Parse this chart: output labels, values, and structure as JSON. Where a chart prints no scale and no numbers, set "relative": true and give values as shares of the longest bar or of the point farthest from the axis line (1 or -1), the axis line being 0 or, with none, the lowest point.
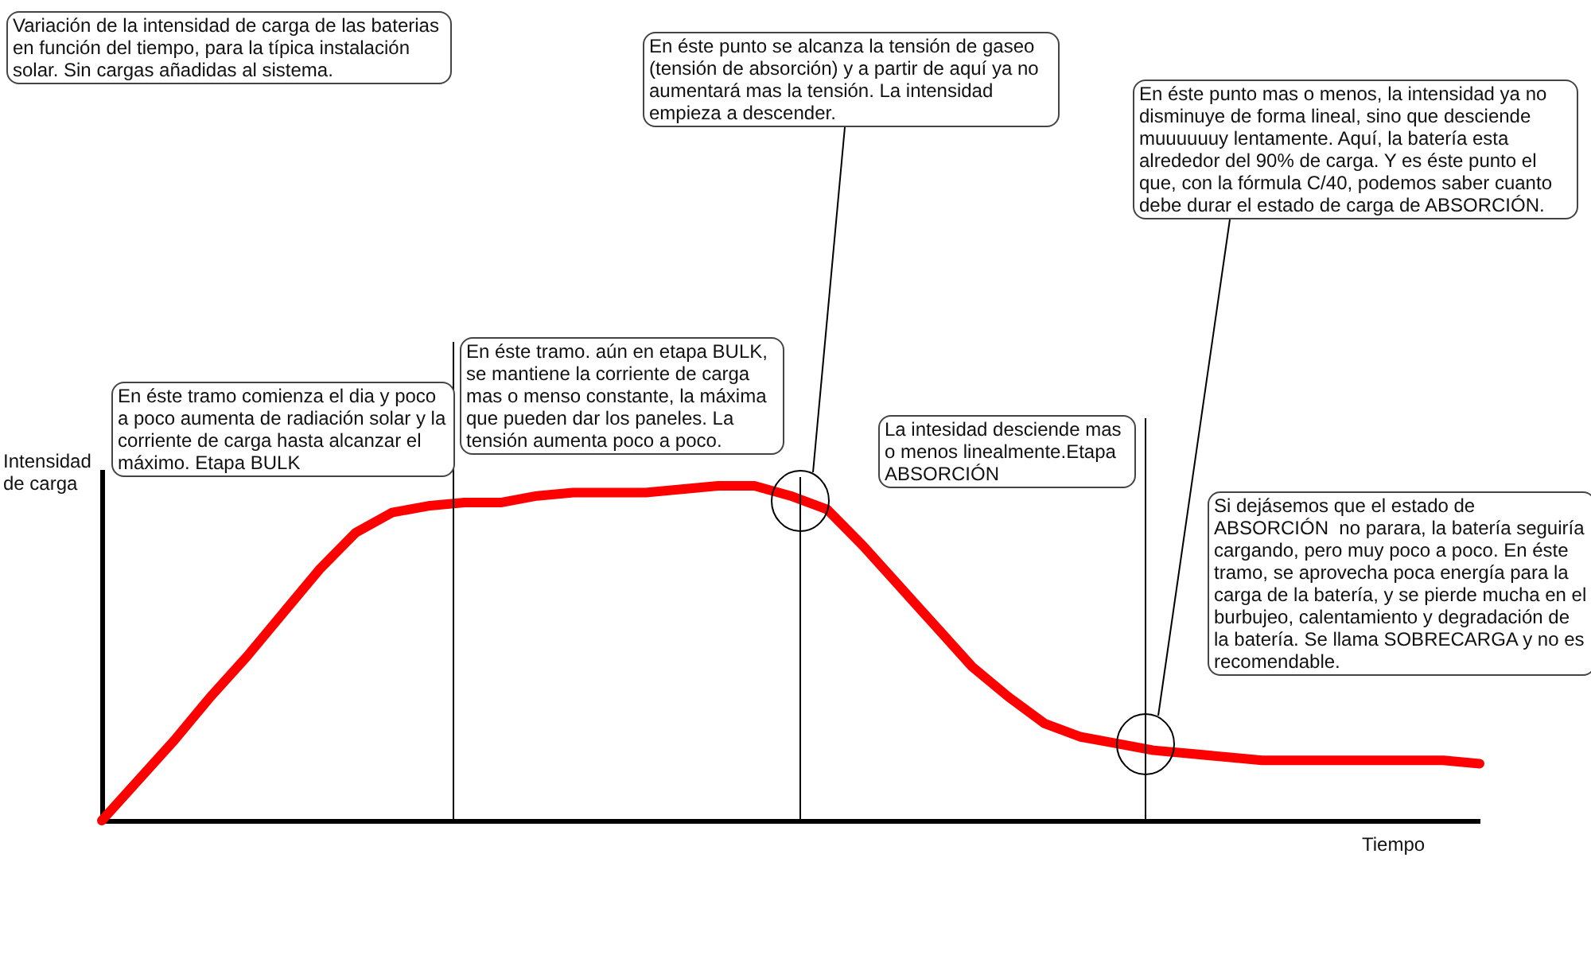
{
  "chart_data": {
    "type": "line",
    "relative": true,
    "title": "Variación de la intensidad de carga de las baterias en función del tiempo, para la típica instalación solar. Sin cargas añadidas al sistema.",
    "xlabel": "Tiempo",
    "ylabel": "Intensidad de carga",
    "categories": [
      null,
      null,
      null,
      null,
      null,
      null,
      null,
      null,
      null,
      null,
      null,
      null,
      null,
      null,
      null,
      null,
      null,
      null,
      null,
      null,
      null,
      null,
      null,
      null,
      null,
      null,
      null,
      null,
      null,
      null,
      null,
      null,
      null,
      null,
      null,
      null,
      null,
      null,
      null
    ],
    "marker": "none",
    "line_style": "solid",
    "series": [
      {
        "color": "#ff0000",
        "values": [
          0,
          0.12,
          0.24,
          0.37,
          0.49,
          0.62,
          0.75,
          0.86,
          0.92,
          0.94,
          0.95,
          0.95,
          0.97,
          0.98,
          0.98,
          0.98,
          0.99,
          1,
          1,
          0.97,
          0.93,
          0.82,
          0.7,
          0.58,
          0.46,
          0.37,
          0.29,
          0.25,
          0.23,
          0.21,
          0.2,
          0.19,
          0.18,
          0.18,
          0.18,
          0.18,
          0.18,
          0.18,
          0.17
        ]
      }
    ],
    "annotations": [
      "En éste punto se alcanza la tensión de gaseo (tensión de absorción) y a partir de aquí ya no aumentará mas la tensión. La intensidad empieza a descender.",
      "En éste punto mas o menos, la intensidad ya no disminuye de forma lineal, sino que desciende muuuuuuy lentamente. Aquí, la batería esta alrededor del 90% de carga. Y es éste punto el que, con la fórmula C/40, podemos saber cuanto debe durar el estado de carga de ABSORCIÓN.",
      "En éste tramo comienza el dia y poco a poco aumenta de radiación solar y la corriente de carga hasta alcanzar el máximo. Etapa BULK",
      "En éste tramo. aún en etapa BULK, se mantiene la corriente de carga mas o menso constante, la máxima que pueden dar los paneles. La tensión aumenta poco a poco.",
      "La intesidad desciende mas o menos linealmente.Etapa ABSORCIÓN",
      "Si dejásemos que el estado de ABSORCIÓN  no parara, la batería seguiría cargando, pero muy poco a poco. En éste tramo, se aprovecha poca energía para la carga de la batería, y se pierde mucha en el burbujeo, calentamiento y degradación de la batería. Se llama SOBRECARGA y no es  recomendable."
    ]
  }
}
